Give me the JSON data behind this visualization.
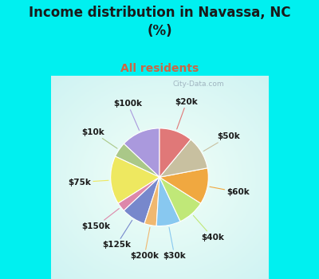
{
  "title": "Income distribution in Navassa, NC\n(%)",
  "subtitle": "All residents",
  "title_color": "#1a1a1a",
  "subtitle_color": "#cc6644",
  "bg_cyan": "#00f0f0",
  "watermark": "City-Data.com",
  "labels": [
    "$100k",
    "$10k",
    "$75k",
    "$150k",
    "$125k",
    "$200k",
    "$30k",
    "$40k",
    "$60k",
    "$50k",
    "$20k"
  ],
  "values": [
    13,
    5,
    16,
    3,
    8,
    4,
    8,
    9,
    12,
    11,
    11
  ],
  "colors": [
    "#aa99dd",
    "#aac888",
    "#eee860",
    "#dd88aa",
    "#7788cc",
    "#f0b870",
    "#88c8f0",
    "#c0e878",
    "#f0a840",
    "#c8c0a0",
    "#e07878"
  ],
  "startangle": 90,
  "label_fontsize": 7.5,
  "label_color": "#1a1a1a",
  "title_fontsize": 12,
  "subtitle_fontsize": 10
}
